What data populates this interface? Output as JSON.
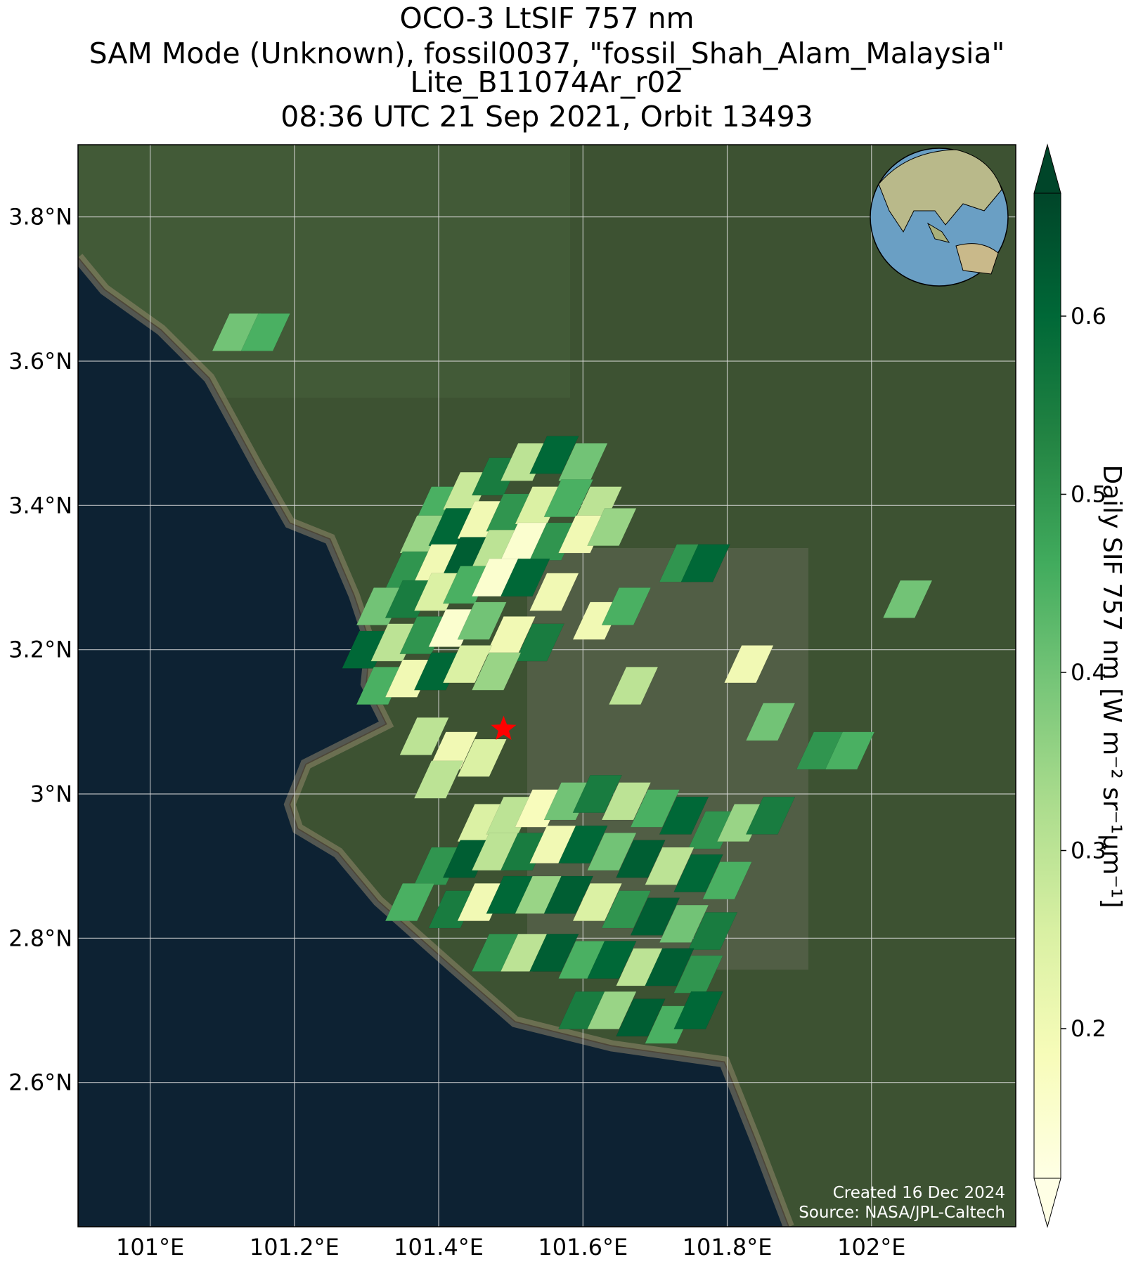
{
  "chart_data": {
    "type": "map",
    "title": [
      "OCO-3 LtSIF 757 nm",
      "SAM Mode (Unknown), fossil0037, \"fossil_Shah_Alam_Malaysia\"",
      "Lite_B11074Ar_r02",
      "08:36 UTC 21 Sep 2021, Orbit 13493"
    ],
    "xlim": [
      100.9,
      102.2
    ],
    "ylim": [
      2.4,
      3.9
    ],
    "xticks": [
      {
        "value": 101.0,
        "label": "101°E"
      },
      {
        "value": 101.2,
        "label": "101.2°E"
      },
      {
        "value": 101.4,
        "label": "101.4°E"
      },
      {
        "value": 101.6,
        "label": "101.6°E"
      },
      {
        "value": 101.8,
        "label": "101.8°E"
      },
      {
        "value": 102.0,
        "label": "102°E"
      }
    ],
    "yticks": [
      {
        "value": 2.6,
        "label": "2.6°N"
      },
      {
        "value": 2.8,
        "label": "2.8°N"
      },
      {
        "value": 3.0,
        "label": "3°N"
      },
      {
        "value": 3.2,
        "label": "3.2°N"
      },
      {
        "value": 3.4,
        "label": "3.4°N"
      },
      {
        "value": 3.6,
        "label": "3.6°N"
      },
      {
        "value": 3.8,
        "label": "3.8°N"
      }
    ],
    "grid": true,
    "colorbar": {
      "label": "Daily SIF 757 nm [W m⁻² sr⁻¹μm⁻¹]",
      "clim": [
        0.116,
        0.669
      ],
      "ticks": [
        0.2,
        0.3,
        0.4,
        0.5,
        0.6
      ],
      "colors": [
        "#ffffe5",
        "#f7fcb9",
        "#d9f0a3",
        "#addd8e",
        "#78c679",
        "#41ab5d",
        "#238443",
        "#006837",
        "#004529"
      ]
    },
    "site_lon": 101.49,
    "site_lat": 3.09,
    "site_color": "#ff0000",
    "footprints": {
      "lon": [
        101.4,
        101.44,
        101.48,
        101.52,
        101.56,
        101.6,
        101.38,
        101.42,
        101.46,
        101.5,
        101.54,
        101.58,
        101.62,
        101.36,
        101.4,
        101.44,
        101.48,
        101.52,
        101.56,
        101.6,
        101.64,
        101.32,
        101.36,
        101.4,
        101.44,
        101.48,
        101.52,
        101.56,
        101.3,
        101.34,
        101.38,
        101.42,
        101.46,
        101.5,
        101.54,
        101.32,
        101.36,
        101.4,
        101.44,
        101.48,
        101.38,
        101.42,
        101.46,
        101.4,
        101.62,
        101.66,
        101.74,
        101.77,
        101.67,
        101.83,
        101.86,
        101.93,
        101.97,
        102.05,
        101.12,
        101.16,
        101.46,
        101.5,
        101.54,
        101.58,
        101.62,
        101.66,
        101.7,
        101.74,
        101.78,
        101.82,
        101.86,
        101.4,
        101.44,
        101.48,
        101.52,
        101.56,
        101.6,
        101.64,
        101.68,
        101.72,
        101.76,
        101.8,
        101.36,
        101.42,
        101.46,
        101.5,
        101.54,
        101.58,
        101.62,
        101.66,
        101.7,
        101.74,
        101.78,
        101.48,
        101.52,
        101.56,
        101.6,
        101.64,
        101.68,
        101.72,
        101.76,
        101.6,
        101.64,
        101.68,
        101.72,
        101.76
      ],
      "lat": [
        3.4,
        3.42,
        3.44,
        3.46,
        3.47,
        3.46,
        3.36,
        3.37,
        3.38,
        3.39,
        3.4,
        3.41,
        3.4,
        3.31,
        3.32,
        3.33,
        3.34,
        3.35,
        3.35,
        3.36,
        3.37,
        3.26,
        3.27,
        3.28,
        3.29,
        3.3,
        3.3,
        3.28,
        3.2,
        3.21,
        3.22,
        3.23,
        3.24,
        3.22,
        3.21,
        3.15,
        3.16,
        3.17,
        3.18,
        3.17,
        3.08,
        3.06,
        3.05,
        3.02,
        3.24,
        3.26,
        3.32,
        3.32,
        3.15,
        3.18,
        3.1,
        3.06,
        3.06,
        3.27,
        3.64,
        3.64,
        2.96,
        2.97,
        2.98,
        2.99,
        3.0,
        2.99,
        2.98,
        2.97,
        2.95,
        2.96,
        2.97,
        2.9,
        2.91,
        2.92,
        2.92,
        2.93,
        2.93,
        2.92,
        2.91,
        2.9,
        2.89,
        2.88,
        2.85,
        2.84,
        2.85,
        2.86,
        2.86,
        2.86,
        2.85,
        2.84,
        2.83,
        2.82,
        2.81,
        2.78,
        2.78,
        2.78,
        2.77,
        2.77,
        2.76,
        2.76,
        2.75,
        2.7,
        2.7,
        2.69,
        2.68,
        2.7
      ],
      "sif": [
        0.45,
        0.28,
        0.55,
        0.3,
        0.6,
        0.4,
        0.35,
        0.6,
        0.2,
        0.5,
        0.25,
        0.45,
        0.3,
        0.5,
        0.2,
        0.62,
        0.3,
        0.15,
        0.5,
        0.2,
        0.35,
        0.4,
        0.55,
        0.25,
        0.45,
        0.15,
        0.6,
        0.2,
        0.6,
        0.3,
        0.5,
        0.15,
        0.4,
        0.2,
        0.55,
        0.45,
        0.2,
        0.6,
        0.25,
        0.35,
        0.3,
        0.2,
        0.25,
        0.3,
        0.2,
        0.45,
        0.5,
        0.6,
        0.3,
        0.2,
        0.4,
        0.5,
        0.45,
        0.4,
        0.4,
        0.45,
        0.25,
        0.3,
        0.18,
        0.4,
        0.55,
        0.3,
        0.45,
        0.6,
        0.5,
        0.35,
        0.55,
        0.5,
        0.62,
        0.3,
        0.55,
        0.2,
        0.6,
        0.4,
        0.62,
        0.3,
        0.6,
        0.45,
        0.45,
        0.55,
        0.2,
        0.6,
        0.35,
        0.62,
        0.25,
        0.5,
        0.62,
        0.4,
        0.55,
        0.5,
        0.3,
        0.62,
        0.45,
        0.6,
        0.3,
        0.62,
        0.5,
        0.55,
        0.35,
        0.62,
        0.45,
        0.6
      ]
    },
    "credits": [
      "Created 16 Dec 2024",
      "Source: NASA/JPL-Caltech"
    ]
  }
}
